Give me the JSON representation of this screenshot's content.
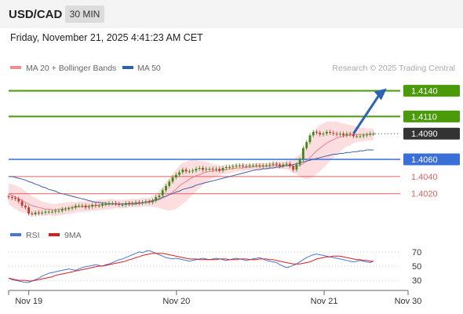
{
  "header": {
    "symbol": "USD/CAD",
    "timeframe": "30 MIN"
  },
  "timestamp": "Friday, November 21, 2025 4:41:23 AM CET",
  "legend": {
    "ma20": {
      "label": "MA 20 + Bollinger Bands",
      "color": "#f28b8b"
    },
    "ma50": {
      "label": "MA 50",
      "color": "#3060a8"
    },
    "credit": "Research © 2025 Trading Central"
  },
  "colors": {
    "green": "#4a9a0a",
    "blue": "#3a6fd8",
    "red": "#e06060",
    "dark": "#333333",
    "band": "#fbd7da",
    "bull": "#3e8a18",
    "bear": "#c0392b",
    "arrow": "#2b63b5"
  },
  "levels": [
    {
      "value": 1.414,
      "label": "1.4140",
      "kind": "resistance-target"
    },
    {
      "value": 1.411,
      "label": "1.4110",
      "kind": "resistance"
    },
    {
      "value": 1.409,
      "label": "1.4090",
      "kind": "last-price"
    },
    {
      "value": 1.406,
      "label": "1.4060",
      "kind": "pivot"
    },
    {
      "value": 1.404,
      "label": "1.4040",
      "kind": "support"
    },
    {
      "value": 1.402,
      "label": "1.4020",
      "kind": "support"
    }
  ],
  "chart_data": {
    "type": "line",
    "ylim": [
      1.3985,
      1.4157
    ],
    "x_labels": [
      "Nov 19",
      "Nov 20",
      "Nov 21",
      "Nov 30"
    ],
    "x_label_index": [
      12,
      100,
      188,
      238
    ],
    "x_count": 238,
    "price_series": {
      "name": "USD/CAD",
      "values": [
        1.4016,
        1.4015,
        1.4014,
        1.4011,
        1.4006,
        1.4004,
        1.3997,
        1.3996,
        1.3998,
        1.3997,
        1.3998,
        1.3999,
        1.3999,
        1.3999,
        1.4,
        1.4,
        1.4002,
        1.4002,
        1.4003,
        1.4004,
        1.4006,
        1.4006,
        1.4006,
        1.4004,
        1.4005,
        1.4007,
        1.4006,
        1.4006,
        1.4008,
        1.4008,
        1.4009,
        1.4009,
        1.4008,
        1.4007,
        1.4007,
        1.4009,
        1.4008,
        1.4009,
        1.401,
        1.4009,
        1.401,
        1.4011,
        1.401,
        1.4012,
        1.4016,
        1.4018,
        1.4024,
        1.4029,
        1.4034,
        1.4039,
        1.4042,
        1.4045,
        1.4048,
        1.4046,
        1.4046,
        1.4047,
        1.4049,
        1.405,
        1.4048,
        1.4049,
        1.4049,
        1.4048,
        1.4049,
        1.4047,
        1.405,
        1.4051,
        1.4051,
        1.4052,
        1.4053,
        1.4053,
        1.4052,
        1.4052,
        1.4053,
        1.4053,
        1.4053,
        1.4052,
        1.4053,
        1.4053,
        1.4054,
        1.4055,
        1.4054,
        1.4052,
        1.4054,
        1.4055,
        1.4052,
        1.4048,
        1.4054,
        1.406,
        1.4073,
        1.408,
        1.4088,
        1.4092,
        1.4091,
        1.4089,
        1.409,
        1.4092,
        1.4091,
        1.409,
        1.4089,
        1.409,
        1.4088,
        1.409,
        1.4089,
        1.4087,
        1.4087,
        1.4087,
        1.4088,
        1.4089,
        1.409,
        1.409
      ]
    },
    "ma20_series": {
      "name": "MA 20 + Bollinger Bands",
      "values": [
        1.402,
        1.4018,
        1.4016,
        1.4014,
        1.4012,
        1.401,
        1.4008,
        1.4006,
        1.4005,
        1.4004,
        1.4003,
        1.4002,
        1.4002,
        1.4001,
        1.4001,
        1.4002,
        1.4002,
        1.4003,
        1.4003,
        1.4004,
        1.4004,
        1.4005,
        1.4005,
        1.4005,
        1.4006,
        1.4006,
        1.4006,
        1.4007,
        1.4007,
        1.4007,
        1.4008,
        1.4008,
        1.4008,
        1.4008,
        1.4008,
        1.4008,
        1.4009,
        1.4009,
        1.4009,
        1.4009,
        1.401,
        1.401,
        1.401,
        1.4011,
        1.4012,
        1.4013,
        1.4015,
        1.4017,
        1.4019,
        1.4022,
        1.4025,
        1.4029,
        1.4032,
        1.4034,
        1.4037,
        1.4039,
        1.4041,
        1.4042,
        1.4044,
        1.4045,
        1.4046,
        1.4046,
        1.4047,
        1.4047,
        1.4048,
        1.4048,
        1.4049,
        1.4049,
        1.405,
        1.405,
        1.405,
        1.4051,
        1.4051,
        1.4051,
        1.4052,
        1.4052,
        1.4052,
        1.4052,
        1.4052,
        1.4053,
        1.4053,
        1.4053,
        1.4053,
        1.4053,
        1.4053,
        1.4052,
        1.4053,
        1.4053,
        1.4055,
        1.4058,
        1.4062,
        1.4066,
        1.407,
        1.4073,
        1.4076,
        1.4079,
        1.4081,
        1.4083,
        1.4085,
        1.4086,
        1.4087,
        1.4088,
        1.4088,
        1.4089,
        1.4089,
        1.4089,
        1.4089,
        1.4089,
        1.4089,
        1.4089
      ]
    },
    "band_width": [
      0.0012,
      0.0013,
      0.0014,
      0.0014,
      0.0014,
      0.0013,
      0.0012,
      0.0011,
      0.001,
      0.0009,
      0.0008,
      0.0008,
      0.0007,
      0.0007,
      0.0007,
      0.0007,
      0.0007,
      0.0007,
      0.0007,
      0.0007,
      0.0006,
      0.0006,
      0.0006,
      0.0006,
      0.0006,
      0.0006,
      0.0006,
      0.0006,
      0.0006,
      0.0006,
      0.0006,
      0.0006,
      0.0005,
      0.0005,
      0.0005,
      0.0005,
      0.0005,
      0.0005,
      0.0005,
      0.0005,
      0.0005,
      0.0005,
      0.0005,
      0.0006,
      0.0008,
      0.001,
      0.0013,
      0.0016,
      0.0019,
      0.0021,
      0.0023,
      0.0024,
      0.0024,
      0.0023,
      0.0022,
      0.002,
      0.0018,
      0.0016,
      0.0014,
      0.0012,
      0.001,
      0.0008,
      0.0007,
      0.0006,
      0.0005,
      0.0005,
      0.0005,
      0.0005,
      0.0004,
      0.0004,
      0.0004,
      0.0004,
      0.0004,
      0.0004,
      0.0004,
      0.0004,
      0.0004,
      0.0004,
      0.0004,
      0.0004,
      0.0004,
      0.0004,
      0.0004,
      0.0005,
      0.0006,
      0.0008,
      0.001,
      0.0013,
      0.0017,
      0.0021,
      0.0024,
      0.0026,
      0.0027,
      0.0027,
      0.0026,
      0.0025,
      0.0023,
      0.0021,
      0.0019,
      0.0017,
      0.0015,
      0.0013,
      0.0012,
      0.001,
      0.0009,
      0.0008,
      0.0008,
      0.0007,
      0.0007,
      0.0007
    ],
    "ma50_series": {
      "name": "MA 50",
      "values": [
        1.404,
        1.404,
        1.4039,
        1.4038,
        1.4037,
        1.4036,
        1.4034,
        1.4033,
        1.4031,
        1.403,
        1.4028,
        1.4027,
        1.4025,
        1.4024,
        1.4023,
        1.4021,
        1.402,
        1.4019,
        1.4018,
        1.4017,
        1.4016,
        1.4015,
        1.4014,
        1.4013,
        1.4012,
        1.4011,
        1.401,
        1.401,
        1.4009,
        1.4009,
        1.4008,
        1.4008,
        1.4008,
        1.4008,
        1.4008,
        1.4008,
        1.4008,
        1.4008,
        1.4008,
        1.4009,
        1.4009,
        1.401,
        1.4011,
        1.4012,
        1.4013,
        1.4014,
        1.4016,
        1.4017,
        1.4019,
        1.402,
        1.4022,
        1.4023,
        1.4025,
        1.4026,
        1.4027,
        1.4028,
        1.403,
        1.4031,
        1.4032,
        1.4033,
        1.4034,
        1.4035,
        1.4036,
        1.4037,
        1.4038,
        1.4039,
        1.404,
        1.4041,
        1.4042,
        1.4043,
        1.4044,
        1.4045,
        1.4046,
        1.4047,
        1.4048,
        1.4048,
        1.4049,
        1.4049,
        1.405,
        1.405,
        1.4051,
        1.4051,
        1.4052,
        1.4053,
        1.4053,
        1.4054,
        1.4055,
        1.4056,
        1.4057,
        1.4058,
        1.4059,
        1.406,
        1.4061,
        1.4062,
        1.4063,
        1.4064,
        1.4065,
        1.4066,
        1.4066,
        1.4067,
        1.4067,
        1.4068,
        1.4068,
        1.4069,
        1.4069,
        1.407,
        1.407,
        1.4071,
        1.4071,
        1.4071
      ]
    },
    "rsi_panel": {
      "legend": [
        {
          "label": "RSI",
          "color": "#4a78d0"
        },
        {
          "label": "9MA",
          "color": "#d62020"
        }
      ],
      "ylim": [
        18,
        82
      ],
      "ticks": [
        70,
        50,
        30
      ],
      "tick_labels": [
        "70",
        "50",
        "30"
      ],
      "rsi": [
        33,
        31,
        30,
        29,
        28,
        27,
        27,
        29,
        31,
        33,
        36,
        38,
        40,
        41,
        42,
        43,
        44,
        45,
        46,
        45,
        44,
        46,
        48,
        49,
        50,
        51,
        52,
        51,
        50,
        52,
        53,
        55,
        57,
        59,
        60,
        62,
        64,
        66,
        68,
        70,
        69,
        71,
        72,
        70,
        68,
        66,
        64,
        62,
        61,
        60,
        61,
        60,
        59,
        58,
        57,
        58,
        59,
        60,
        61,
        60,
        59,
        60,
        61,
        60,
        59,
        58,
        59,
        60,
        61,
        60,
        59,
        58,
        59,
        60,
        61,
        62,
        60,
        58,
        57,
        56,
        55,
        52,
        50,
        48,
        49,
        51,
        53,
        56,
        59,
        62,
        64,
        66,
        67,
        66,
        65,
        64,
        63,
        62,
        61,
        60,
        59,
        58,
        57,
        56,
        57,
        58,
        57,
        56,
        55,
        57
      ],
      "ma9": [
        33,
        32,
        31,
        30,
        30,
        30,
        29,
        29,
        30,
        31,
        32,
        33,
        34,
        35,
        37,
        38,
        39,
        40,
        41,
        42,
        43,
        44,
        45,
        46,
        47,
        48,
        49,
        50,
        50,
        51,
        52,
        53,
        54,
        55,
        56,
        57,
        59,
        60,
        62,
        63,
        65,
        66,
        67,
        68,
        68,
        68,
        68,
        67,
        66,
        65,
        64,
        63,
        62,
        61,
        60,
        60,
        60,
        59,
        59,
        59,
        59,
        59,
        59,
        60,
        60,
        60,
        59,
        59,
        59,
        60,
        60,
        60,
        59,
        59,
        59,
        60,
        60,
        60,
        59,
        59,
        58,
        57,
        56,
        55,
        54,
        53,
        53,
        53,
        54,
        55,
        56,
        58,
        60,
        61,
        62,
        63,
        63,
        64,
        64,
        64,
        63,
        62,
        61,
        60,
        59,
        59,
        58,
        58,
        57,
        57
      ]
    },
    "arrow": {
      "from": [
        103,
        1.409
      ],
      "to": [
        112,
        1.414
      ]
    }
  }
}
